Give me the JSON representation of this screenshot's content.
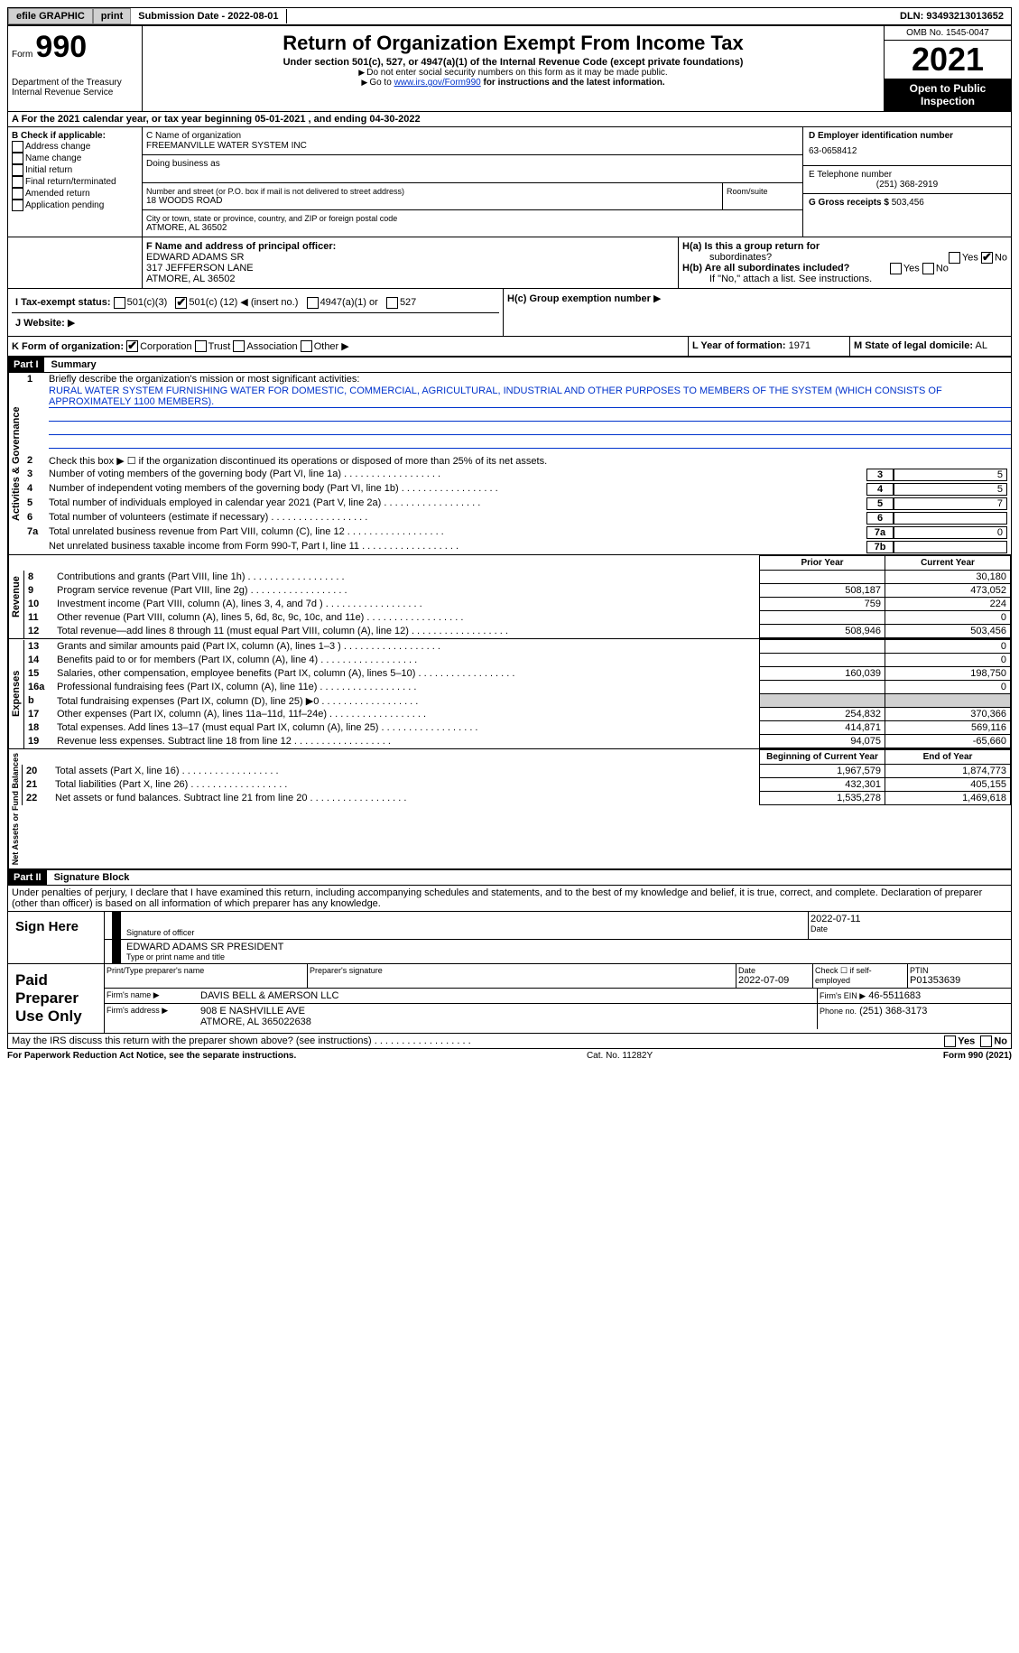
{
  "toolbar": {
    "efile": "efile GRAPHIC",
    "print": "print",
    "submission": "Submission Date - 2022-08-01",
    "dln": "DLN: 93493213013652"
  },
  "header": {
    "form_label": "Form",
    "form_no": "990",
    "dept": "Department of the Treasury",
    "irs": "Internal Revenue Service",
    "title": "Return of Organization Exempt From Income Tax",
    "subtitle": "Under section 501(c), 527, or 4947(a)(1) of the Internal Revenue Code (except private foundations)",
    "note1": "Do not enter social security numbers on this form as it may be made public.",
    "note2_pre": "Go to ",
    "note2_link": "www.irs.gov/Form990",
    "note2_post": " for instructions and the latest information.",
    "omb": "OMB No. 1545-0047",
    "year": "2021",
    "open": "Open to Public Inspection"
  },
  "rowA": "A For the 2021 calendar year, or tax year beginning 05-01-2021   , and ending 04-30-2022",
  "sectionB": {
    "label": "B Check if applicable:",
    "opts": [
      "Address change",
      "Name change",
      "Initial return",
      "Final return/terminated",
      "Amended return",
      "Application pending"
    ]
  },
  "sectionC": {
    "name_label": "C Name of organization",
    "name": "FREEMANVILLE WATER SYSTEM INC",
    "dba_label": "Doing business as",
    "street_label": "Number and street (or P.O. box if mail is not delivered to street address)",
    "room_label": "Room/suite",
    "street": "18 WOODS ROAD",
    "city_label": "City or town, state or province, country, and ZIP or foreign postal code",
    "city": "ATMORE, AL  36502"
  },
  "sectionD": {
    "ein_label": "D Employer identification number",
    "ein": "63-0658412",
    "phone_label": "E Telephone number",
    "phone": "(251) 368-2919",
    "gross_label": "G Gross receipts $",
    "gross": "503,456"
  },
  "sectionF": {
    "label": "F Name and address of principal officer:",
    "name": "EDWARD ADAMS SR",
    "addr1": "317 JEFFERSON LANE",
    "addr2": "ATMORE, AL  36502"
  },
  "sectionH": {
    "ha_label": "H(a)  Is this a group return for",
    "ha_sub": "subordinates?",
    "hb_label": "H(b)  Are all subordinates included?",
    "hb_note": "If \"No,\" attach a list. See instructions.",
    "hc_label": "H(c)  Group exemption number",
    "yes": "Yes",
    "no": "No"
  },
  "sectionI": {
    "label": "I  Tax-exempt status:",
    "o1": "501(c)(3)",
    "o2": "501(c) (",
    "o2v": "12",
    "o2post": ") ◀ (insert no.)",
    "o3": "4947(a)(1) or",
    "o4": "527"
  },
  "sectionJ": {
    "label": "J  Website:",
    "arrow": "▶"
  },
  "sectionK": {
    "label": "K Form of organization:",
    "o1": "Corporation",
    "o2": "Trust",
    "o3": "Association",
    "o4": "Other"
  },
  "sectionL": {
    "label": "L Year of formation:",
    "val": "1971"
  },
  "sectionM": {
    "label": "M State of legal domicile:",
    "val": "AL"
  },
  "part1": {
    "header": "Part I",
    "title": "Summary",
    "vert1": "Activities & Governance",
    "line1_label": "Briefly describe the organization's mission or most significant activities:",
    "line1_text": "RURAL WATER SYSTEM FURNISHING WATER FOR DOMESTIC, COMMERCIAL, AGRICULTURAL, INDUSTRIAL AND OTHER PURPOSES TO MEMBERS OF THE SYSTEM (WHICH CONSISTS OF APPROXIMATELY 1100 MEMBERS).",
    "line2": "Check this box ▶ ☐ if the organization discontinued its operations or disposed of more than 25% of its net assets.",
    "lines": [
      {
        "n": "3",
        "t": "Number of voting members of the governing body (Part VI, line 1a)",
        "box": "3",
        "v": "5"
      },
      {
        "n": "4",
        "t": "Number of independent voting members of the governing body (Part VI, line 1b)",
        "box": "4",
        "v": "5"
      },
      {
        "n": "5",
        "t": "Total number of individuals employed in calendar year 2021 (Part V, line 2a)",
        "box": "5",
        "v": "7"
      },
      {
        "n": "6",
        "t": "Total number of volunteers (estimate if necessary)",
        "box": "6",
        "v": ""
      },
      {
        "n": "7a",
        "t": "Total unrelated business revenue from Part VIII, column (C), line 12",
        "box": "7a",
        "v": "0"
      },
      {
        "n": "",
        "t": "Net unrelated business taxable income from Form 990-T, Part I, line 11",
        "box": "7b",
        "v": ""
      }
    ],
    "col_prior": "Prior Year",
    "col_current": "Current Year",
    "vert2": "Revenue",
    "revenue": [
      {
        "n": "8",
        "t": "Contributions and grants (Part VIII, line 1h)",
        "p": "",
        "c": "30,180"
      },
      {
        "n": "9",
        "t": "Program service revenue (Part VIII, line 2g)",
        "p": "508,187",
        "c": "473,052"
      },
      {
        "n": "10",
        "t": "Investment income (Part VIII, column (A), lines 3, 4, and 7d )",
        "p": "759",
        "c": "224"
      },
      {
        "n": "11",
        "t": "Other revenue (Part VIII, column (A), lines 5, 6d, 8c, 9c, 10c, and 11e)",
        "p": "",
        "c": "0"
      },
      {
        "n": "12",
        "t": "Total revenue—add lines 8 through 11 (must equal Part VIII, column (A), line 12)",
        "p": "508,946",
        "c": "503,456"
      }
    ],
    "vert3": "Expenses",
    "expenses": [
      {
        "n": "13",
        "t": "Grants and similar amounts paid (Part IX, column (A), lines 1–3 )",
        "p": "",
        "c": "0"
      },
      {
        "n": "14",
        "t": "Benefits paid to or for members (Part IX, column (A), line 4)",
        "p": "",
        "c": "0"
      },
      {
        "n": "15",
        "t": "Salaries, other compensation, employee benefits (Part IX, column (A), lines 5–10)",
        "p": "160,039",
        "c": "198,750"
      },
      {
        "n": "16a",
        "t": "Professional fundraising fees (Part IX, column (A), line 11e)",
        "p": "",
        "c": "0"
      },
      {
        "n": "b",
        "t": "Total fundraising expenses (Part IX, column (D), line 25) ▶0",
        "p": "SHADE",
        "c": "SHADE"
      },
      {
        "n": "17",
        "t": "Other expenses (Part IX, column (A), lines 11a–11d, 11f–24e)",
        "p": "254,832",
        "c": "370,366"
      },
      {
        "n": "18",
        "t": "Total expenses. Add lines 13–17 (must equal Part IX, column (A), line 25)",
        "p": "414,871",
        "c": "569,116"
      },
      {
        "n": "19",
        "t": "Revenue less expenses. Subtract line 18 from line 12",
        "p": "94,075",
        "c": "-65,660"
      }
    ],
    "col_begin": "Beginning of Current Year",
    "col_end": "End of Year",
    "vert4": "Net Assets or Fund Balances",
    "netassets": [
      {
        "n": "20",
        "t": "Total assets (Part X, line 16)",
        "p": "1,967,579",
        "c": "1,874,773"
      },
      {
        "n": "21",
        "t": "Total liabilities (Part X, line 26)",
        "p": "432,301",
        "c": "405,155"
      },
      {
        "n": "22",
        "t": "Net assets or fund balances. Subtract line 21 from line 20",
        "p": "1,535,278",
        "c": "1,469,618"
      }
    ]
  },
  "part2": {
    "header": "Part II",
    "title": "Signature Block",
    "perjury": "Under penalties of perjury, I declare that I have examined this return, including accompanying schedules and statements, and to the best of my knowledge and belief, it is true, correct, and complete. Declaration of preparer (other than officer) is based on all information of which preparer has any knowledge.",
    "sign_here": "Sign Here",
    "sig_officer": "Signature of officer",
    "sig_date_label": "Date",
    "sig_date": "2022-07-11",
    "printed_name": "EDWARD ADAMS SR PRESIDENT",
    "printed_label": "Type or print name and title",
    "paid_prep": "Paid Preparer Use Only",
    "prep_name_label": "Print/Type preparer's name",
    "prep_sig_label": "Preparer's signature",
    "date_label": "Date",
    "date_val": "2022-07-09",
    "check_label": "Check ☐ if self-employed",
    "ptin_label": "PTIN",
    "ptin": "P01353639",
    "firm_label": "Firm's name   ▶",
    "firm_name": "DAVIS BELL & AMERSON LLC",
    "firm_ein_label": "Firm's EIN ▶",
    "firm_ein": "46-5511683",
    "firm_addr_label": "Firm's address ▶",
    "firm_addr1": "908 E NASHVILLE AVE",
    "firm_addr2": "ATMORE, AL  365022638",
    "firm_phone_label": "Phone no.",
    "firm_phone": "(251) 368-3173",
    "discuss": "May the IRS discuss this return with the preparer shown above? (see instructions)"
  },
  "footer": {
    "left": "For Paperwork Reduction Act Notice, see the separate instructions.",
    "mid": "Cat. No. 11282Y",
    "right": "Form 990 (2021)"
  }
}
